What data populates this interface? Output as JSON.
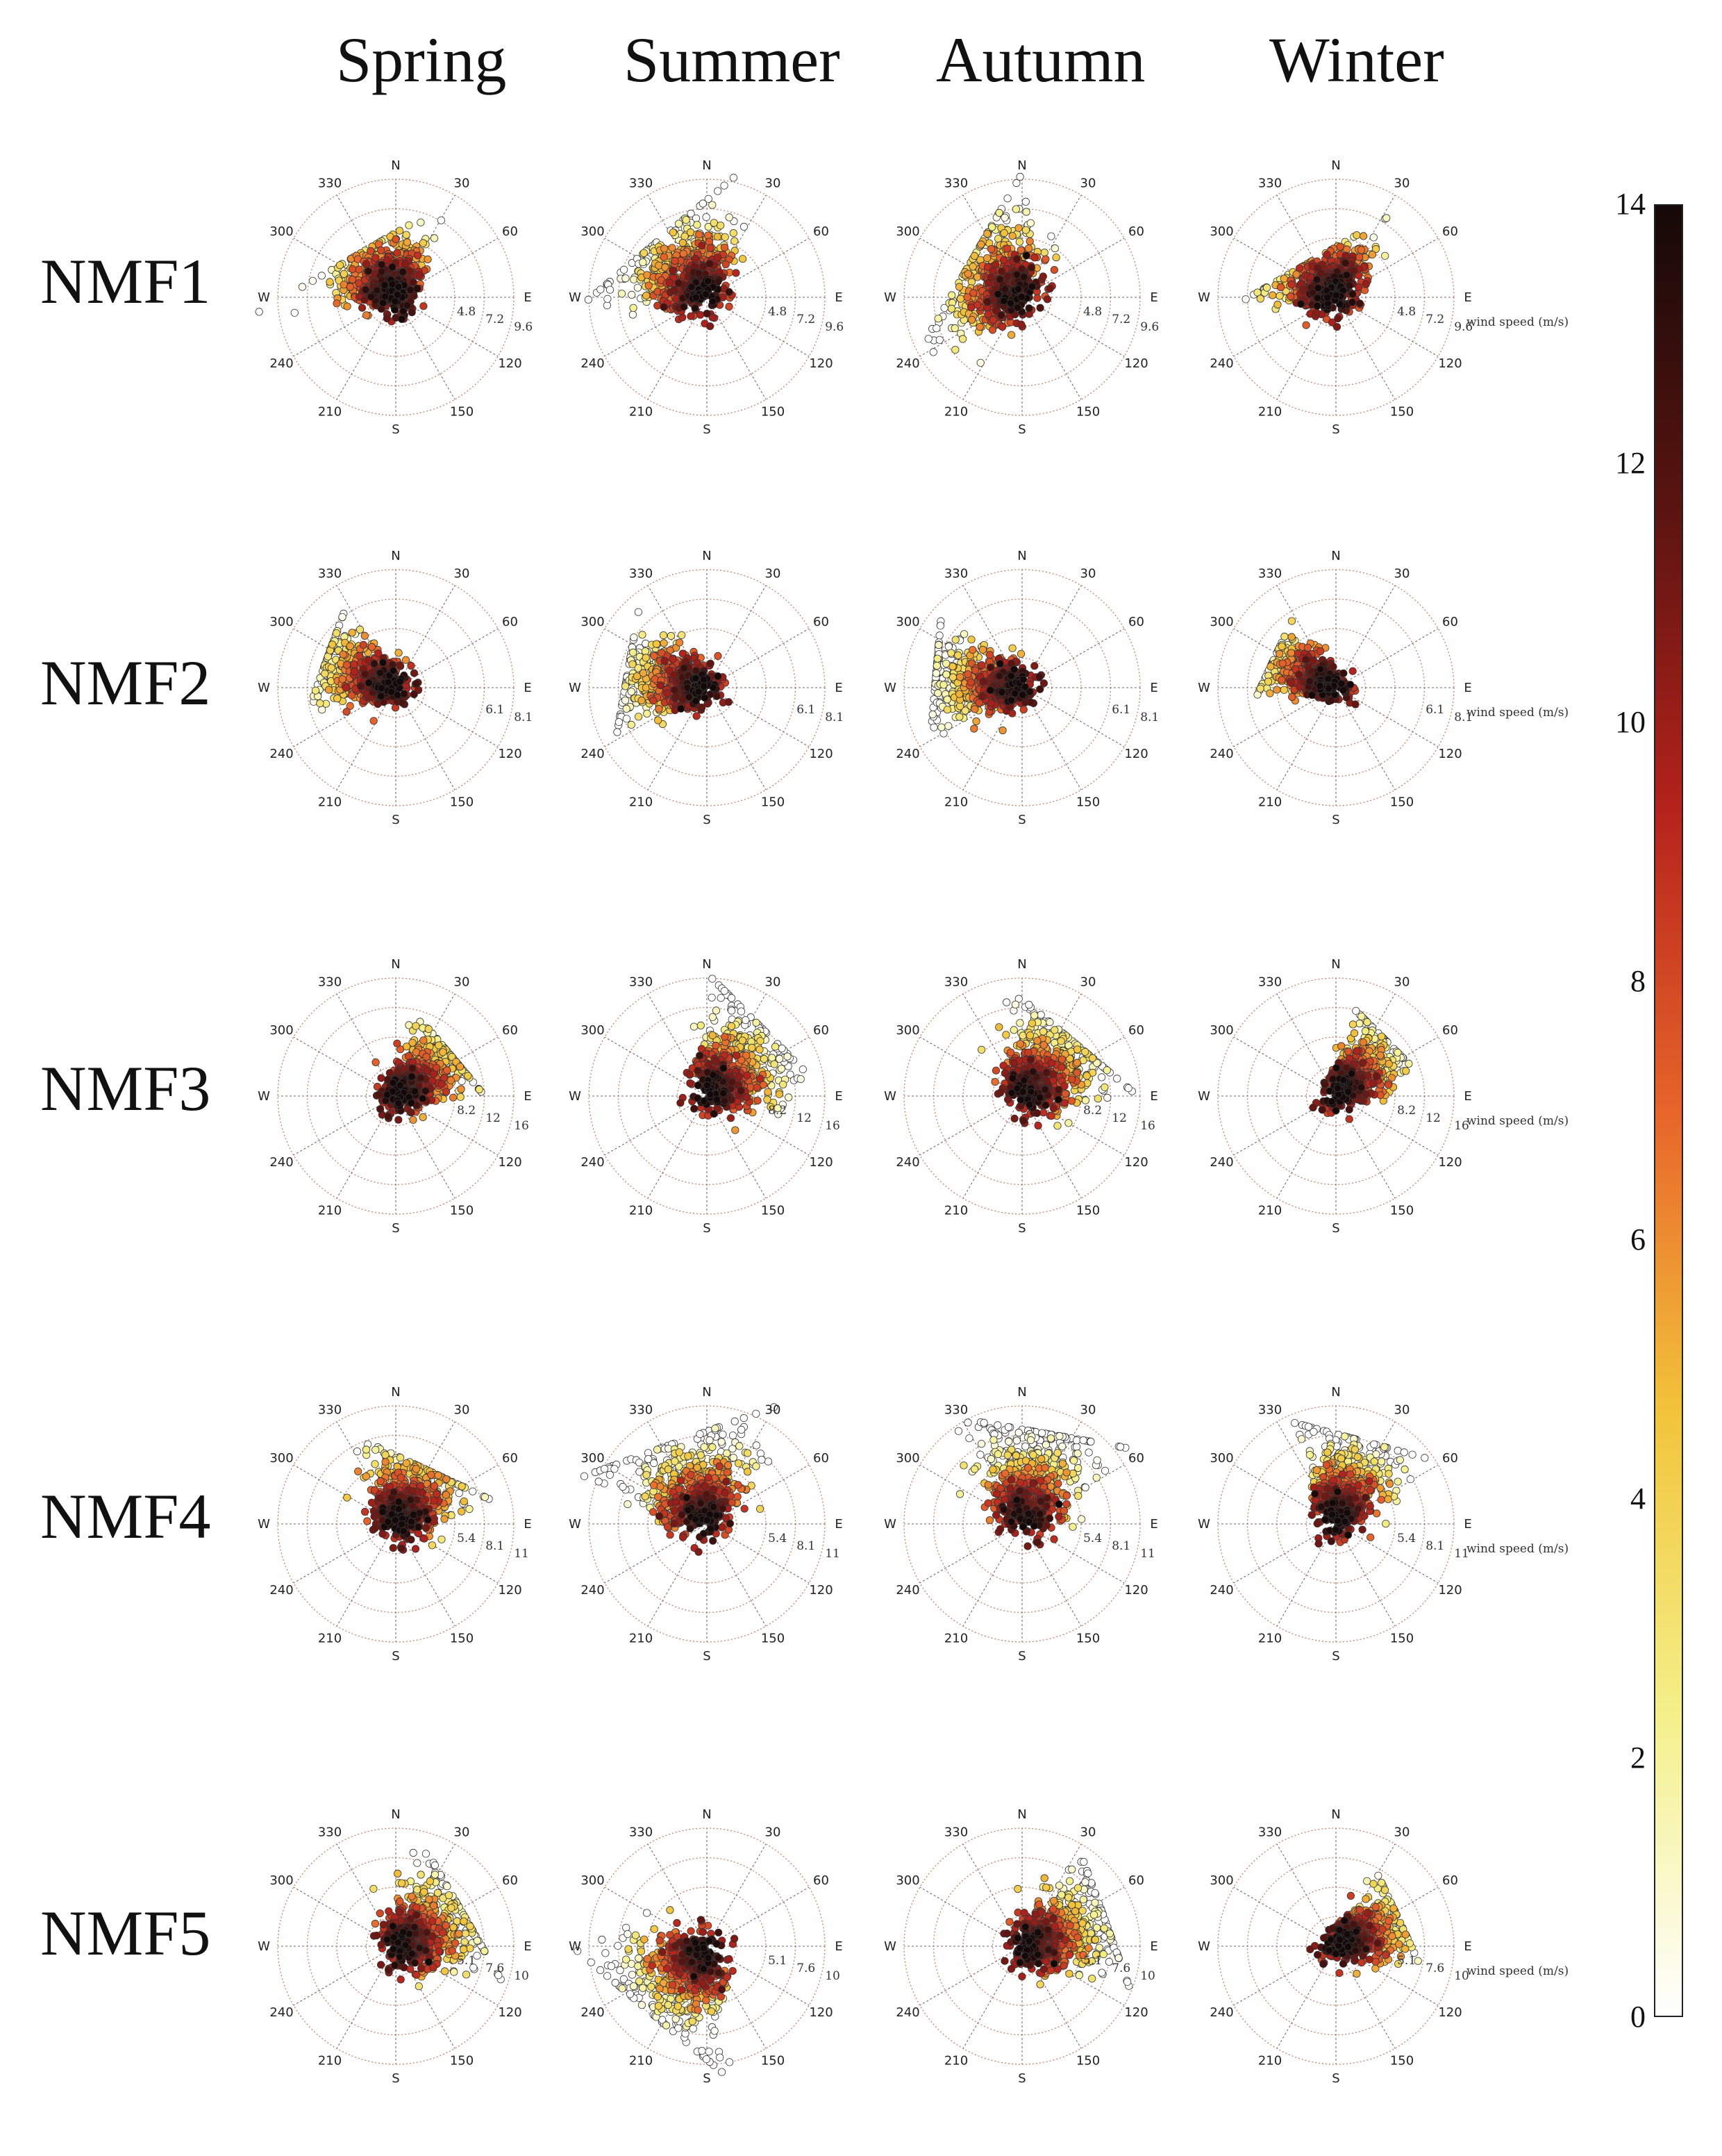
{
  "chart_data": {
    "type": "scatter",
    "subtype": "polar-scatter-grid",
    "columns": [
      "Spring",
      "Summer",
      "Autumn",
      "Winter"
    ],
    "rows": [
      "NMF1",
      "NMF2",
      "NMF3",
      "NMF4",
      "NMF5"
    ],
    "compass_labels": [
      "N",
      "30",
      "60",
      "E",
      "120",
      "150",
      "S",
      "210",
      "240",
      "W",
      "300",
      "330"
    ],
    "speed_unit_label": "wind speed (m/s)",
    "ring_labels": [
      [
        "4.8",
        "7.2",
        "9.6"
      ],
      [
        "6.1",
        "8.1"
      ],
      [
        "8.2",
        "12",
        "16"
      ],
      [
        "5.4",
        "8.1",
        "11"
      ],
      [
        "5.1",
        "7.6",
        "10"
      ]
    ],
    "colorbar": {
      "range": [
        0,
        14
      ],
      "ticks": [
        "0",
        "2",
        "4",
        "6",
        "8",
        "10",
        "12",
        "14"
      ],
      "colormap": [
        "#ffffff",
        "#f4f08a",
        "#f2c43a",
        "#e8642a",
        "#b5221c",
        "#5a1410",
        "#140908"
      ]
    },
    "panels": [
      [
        {
          "lobe_deg": 330,
          "spread": 0.55,
          "extent": 0.45
        },
        {
          "lobe_deg": 320,
          "spread": 0.7,
          "extent": 0.6
        },
        {
          "lobe_deg": 300,
          "spread": 0.7,
          "extent": 0.5
        },
        {
          "lobe_deg": 330,
          "spread": 0.6,
          "extent": 0.35
        }
      ],
      [
        {
          "lobe_deg": 290,
          "spread": 0.35,
          "extent": 0.6
        },
        {
          "lobe_deg": 280,
          "spread": 0.45,
          "extent": 0.65
        },
        {
          "lobe_deg": 275,
          "spread": 0.4,
          "extent": 0.7
        },
        {
          "lobe_deg": 295,
          "spread": 0.3,
          "extent": 0.55
        }
      ],
      [
        {
          "lobe_deg": 50,
          "spread": 0.35,
          "extent": 0.55
        },
        {
          "lobe_deg": 45,
          "spread": 0.6,
          "extent": 0.7
        },
        {
          "lobe_deg": 40,
          "spread": 0.55,
          "extent": 0.6
        },
        {
          "lobe_deg": 45,
          "spread": 0.35,
          "extent": 0.6
        }
      ],
      [
        {
          "lobe_deg": 25,
          "spread": 0.5,
          "extent": 0.5
        },
        {
          "lobe_deg": 340,
          "spread": 0.75,
          "extent": 0.7
        },
        {
          "lobe_deg": 10,
          "spread": 0.6,
          "extent": 0.75
        },
        {
          "lobe_deg": 15,
          "spread": 0.5,
          "extent": 0.7
        }
      ],
      [
        {
          "lobe_deg": 60,
          "spread": 0.55,
          "extent": 0.6
        },
        {
          "lobe_deg": 220,
          "spread": 0.7,
          "extent": 0.7
        },
        {
          "lobe_deg": 70,
          "spread": 0.5,
          "extent": 0.7
        },
        {
          "lobe_deg": 65,
          "spread": 0.35,
          "extent": 0.55
        }
      ]
    ]
  }
}
